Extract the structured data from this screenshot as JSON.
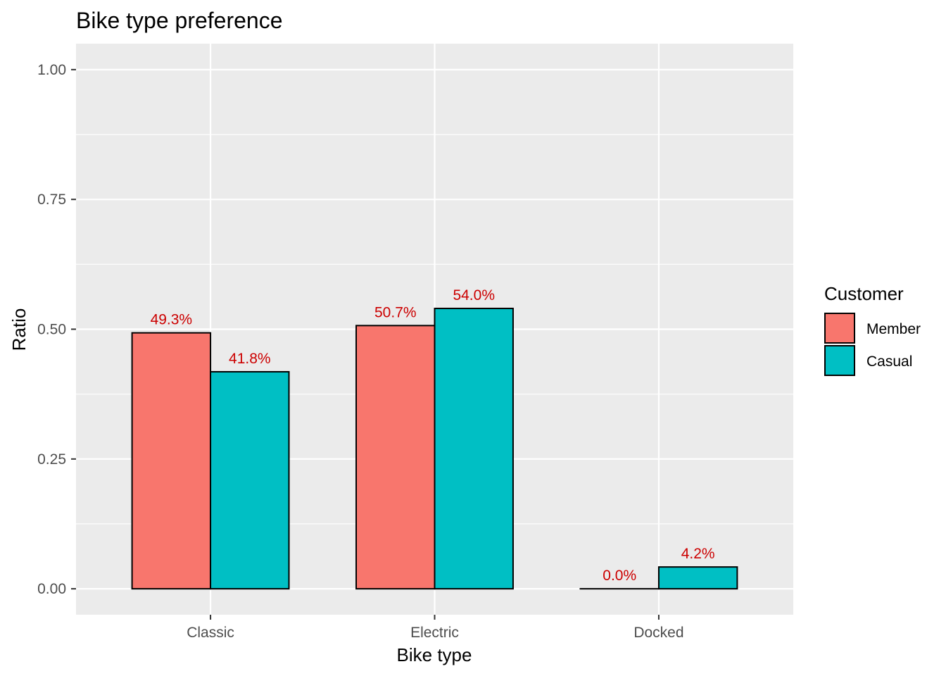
{
  "chart_data": {
    "type": "bar",
    "title": "Bike type preference",
    "xlabel": "Bike type",
    "ylabel": "Ratio",
    "categories": [
      "Classic",
      "Electric",
      "Docked"
    ],
    "series": [
      {
        "name": "Member",
        "values": [
          0.493,
          0.507,
          0.0
        ],
        "labels": [
          "49.3%",
          "50.7%",
          "0.0%"
        ]
      },
      {
        "name": "Casual",
        "values": [
          0.418,
          0.54,
          0.042
        ],
        "labels": [
          "41.8%",
          "54.0%",
          "4.2%"
        ]
      }
    ],
    "ylim": [
      -0.05,
      1.05
    ],
    "yticks": [
      0.0,
      0.25,
      0.5,
      0.75,
      1.0
    ],
    "ytick_labels": [
      "0.00",
      "0.25",
      "0.50",
      "0.75",
      "1.00"
    ],
    "grid": true,
    "legend": {
      "title": "Customer",
      "position": "right"
    }
  },
  "colors": {
    "panel_background": "#EBEBEB",
    "grid": "#FFFFFF",
    "bar_outline": "#000000",
    "data_label": "#CC0000",
    "axis_tick": "#333333",
    "series": [
      "#F8766D",
      "#00BFC4"
    ]
  }
}
